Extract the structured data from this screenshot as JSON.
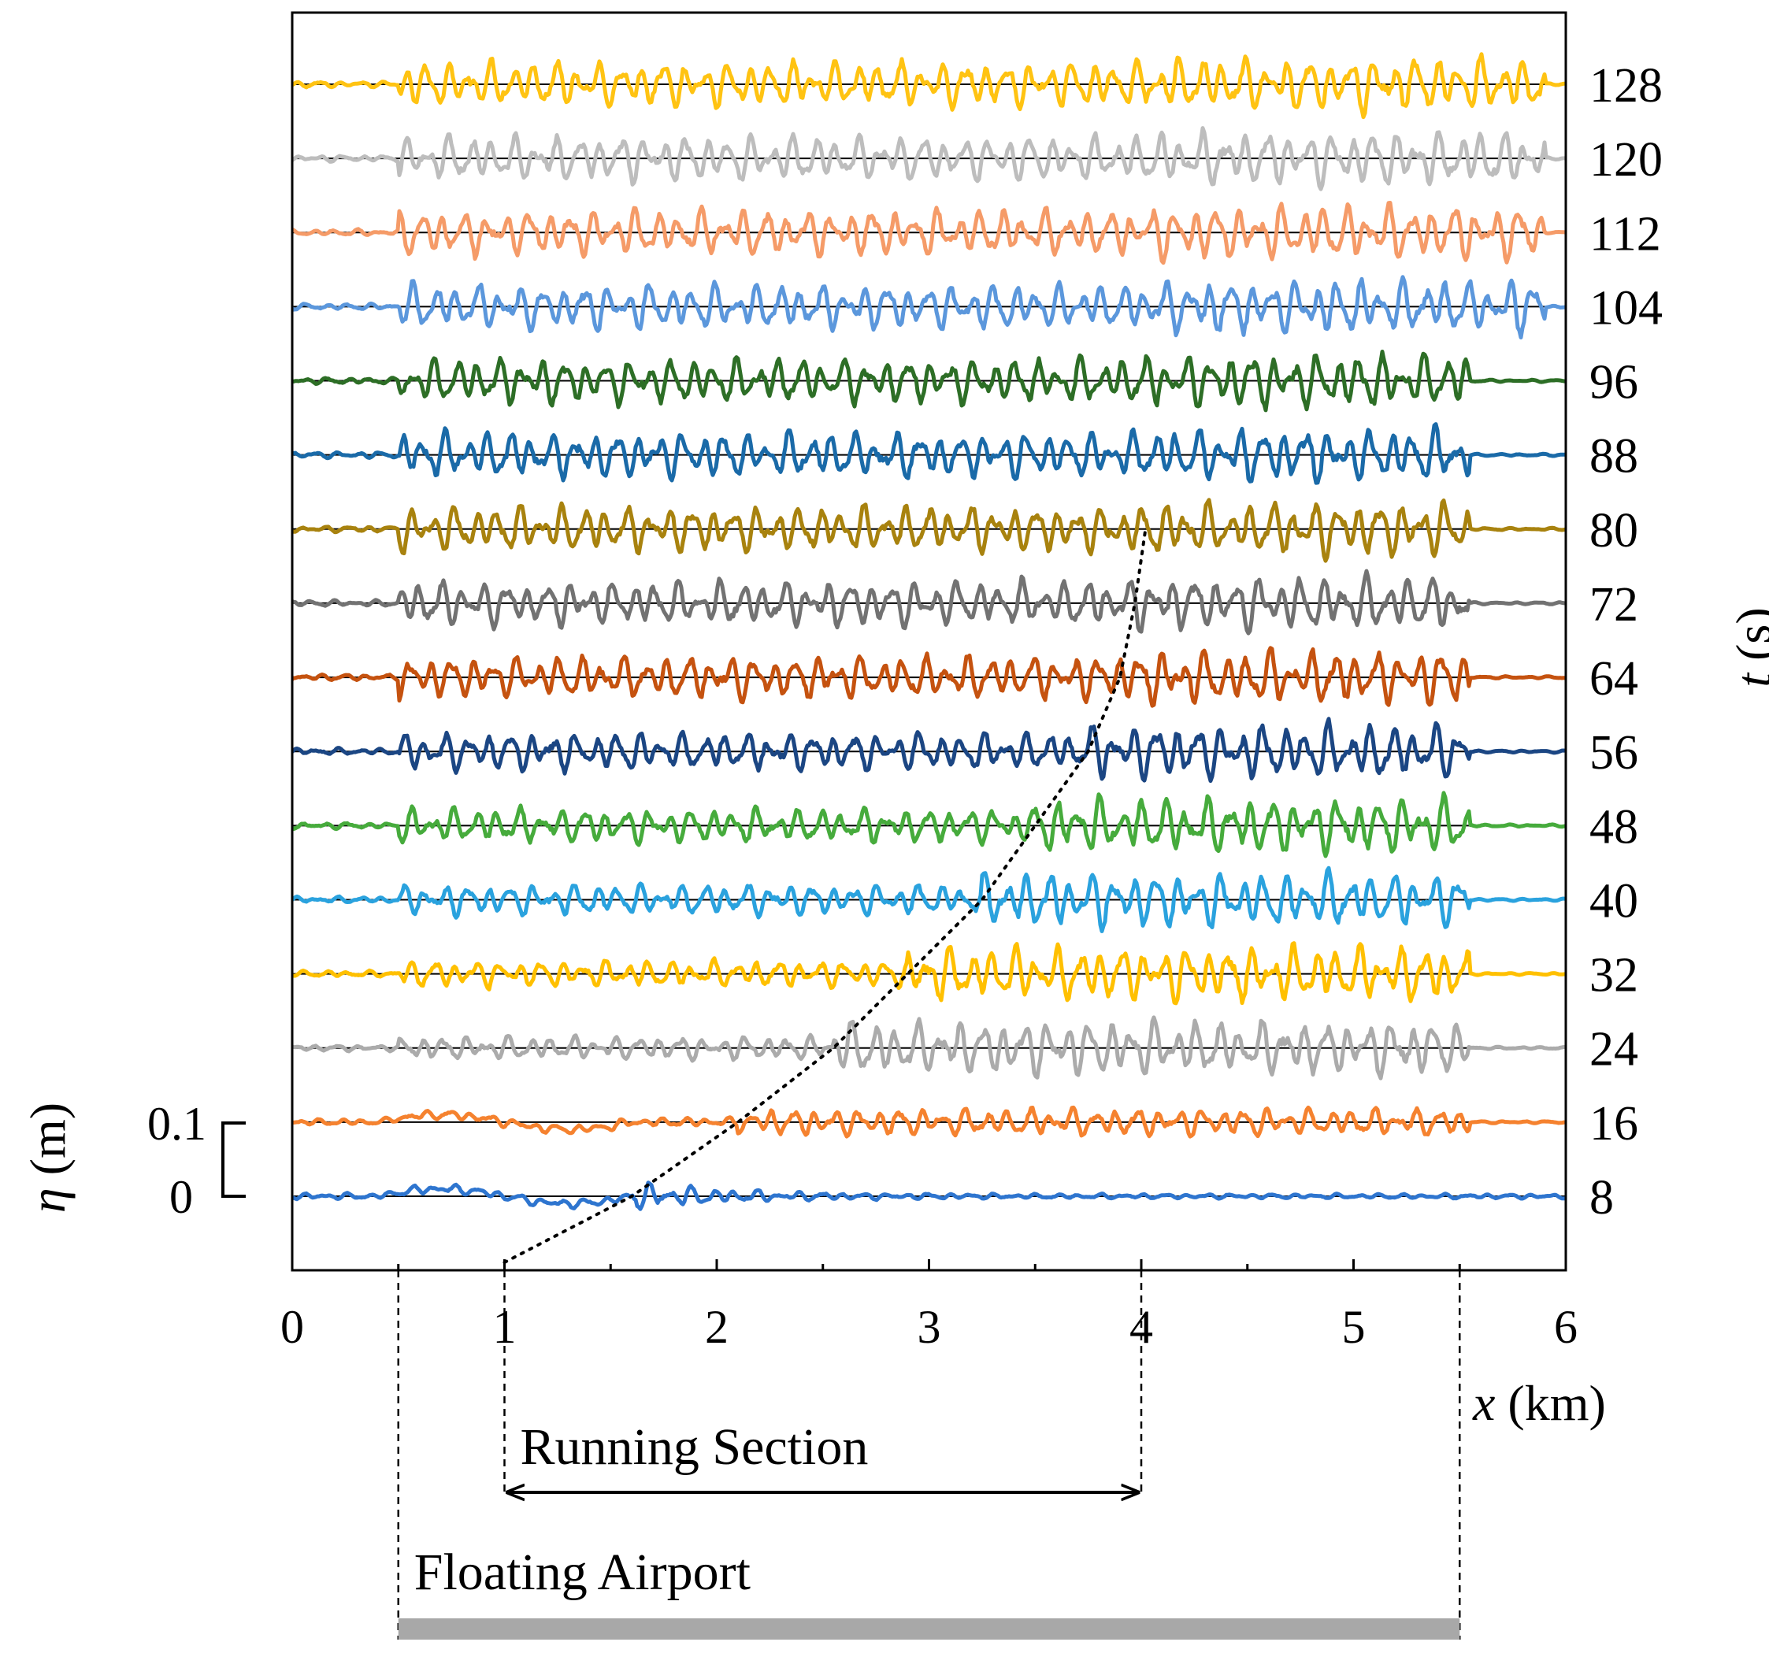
{
  "chart_data": {
    "type": "line",
    "title": "",
    "xlabel": {
      "var": "x",
      "unit": " (km)"
    },
    "ylabel": {
      "var": "η",
      "unit": " (m)"
    },
    "right_axis_label": {
      "var": "t",
      "unit": " (s)"
    },
    "xlim": [
      0,
      6
    ],
    "xticks": [
      "0",
      "1",
      "2",
      "3",
      "4",
      "5",
      "6"
    ],
    "minor_xticks": [
      0.5,
      1.5,
      2.5,
      3.5,
      4.5,
      5.5
    ],
    "grid": false,
    "legend": "none",
    "scale_bar": {
      "top_label": "0.1",
      "bottom_label": "0",
      "height_m": 0.1
    },
    "series": [
      {
        "name": "8",
        "t_s": 8,
        "color": "#2e75cf"
      },
      {
        "name": "16",
        "t_s": 16,
        "color": "#f5822f"
      },
      {
        "name": "24",
        "t_s": 24,
        "color": "#ababab"
      },
      {
        "name": "32",
        "t_s": 32,
        "color": "#ffc000"
      },
      {
        "name": "40",
        "t_s": 40,
        "color": "#2aa2de"
      },
      {
        "name": "48",
        "t_s": 48,
        "color": "#46ab3c"
      },
      {
        "name": "56",
        "t_s": 56,
        "color": "#1b4683"
      },
      {
        "name": "64",
        "t_s": 64,
        "color": "#c5520f"
      },
      {
        "name": "72",
        "t_s": 72,
        "color": "#727272"
      },
      {
        "name": "80",
        "t_s": 80,
        "color": "#a8820e"
      },
      {
        "name": "88",
        "t_s": 88,
        "color": "#1a6aa8"
      },
      {
        "name": "96",
        "t_s": 96,
        "color": "#2d6e26"
      },
      {
        "name": "104",
        "t_s": 104,
        "color": "#5b97dc"
      },
      {
        "name": "112",
        "t_s": 112,
        "color": "#f59b68"
      },
      {
        "name": "120",
        "t_s": 120,
        "color": "#bdbdbd"
      },
      {
        "name": "128",
        "t_s": 128,
        "color": "#ffc312"
      }
    ],
    "wave_front": {
      "style": "dotted",
      "points": [
        [
          1.0,
          0
        ],
        [
          1.6,
          8
        ],
        [
          2.1,
          16
        ],
        [
          2.55,
          24
        ],
        [
          2.9,
          32
        ],
        [
          3.25,
          40
        ],
        [
          3.5,
          48
        ],
        [
          3.75,
          56
        ],
        [
          3.9,
          64
        ],
        [
          3.97,
          72
        ],
        [
          4.02,
          80
        ]
      ]
    },
    "annotations": [
      {
        "name": "running-section",
        "label": "Running Section",
        "x_start": 1.0,
        "x_end": 4.0
      },
      {
        "name": "floating-airport",
        "label": "Floating Airport",
        "x_start": 0.5,
        "x_end": 5.5
      }
    ]
  }
}
